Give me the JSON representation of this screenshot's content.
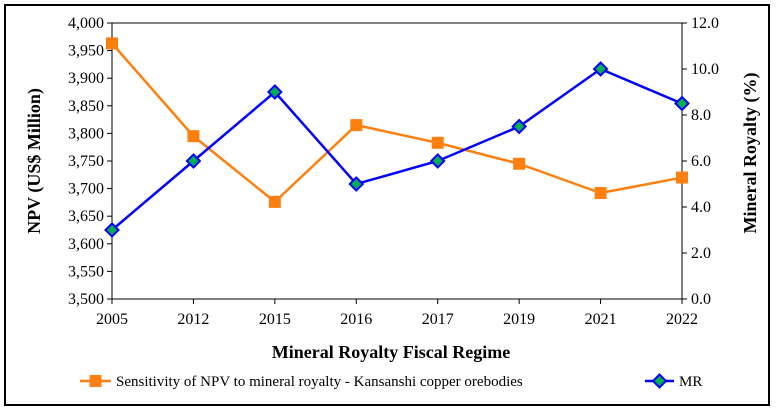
{
  "chart_data": {
    "type": "line",
    "categories": [
      "2005",
      "2012",
      "2015",
      "2016",
      "2017",
      "2019",
      "2021",
      "2022"
    ],
    "xlabel": "Mineral Royalty Fiscal Regime",
    "ylabel_left": "NPV (US$ Million)",
    "ylabel_right": "Mineral Royalty (%)",
    "ylim_left": [
      3500,
      4000
    ],
    "ylim_right": [
      0.0,
      12.0
    ],
    "yticks_left": [
      "3,500",
      "3,550",
      "3,600",
      "3,650",
      "3,700",
      "3,750",
      "3,800",
      "3,850",
      "3,900",
      "3,950",
      "4,000"
    ],
    "yticks_right": [
      "0.0",
      "2.0",
      "4.0",
      "6.0",
      "8.0",
      "10.0",
      "12.0"
    ],
    "grid": false,
    "legend_position": "bottom",
    "series": [
      {
        "name": "Sensitivity of NPV to mineral royalty - Kansanshi copper orebodies",
        "axis": "left",
        "color": "#ff7f0e",
        "marker": "square",
        "values": [
          3963,
          3795,
          3676,
          3815,
          3783,
          3745,
          3692,
          3720
        ]
      },
      {
        "name": "MR",
        "axis": "right",
        "color": "#0000ff",
        "marker": "diamond",
        "marker_fill": "#00b050",
        "values": [
          3.0,
          6.0,
          9.0,
          5.0,
          6.0,
          7.5,
          10.0,
          8.5
        ]
      }
    ]
  }
}
